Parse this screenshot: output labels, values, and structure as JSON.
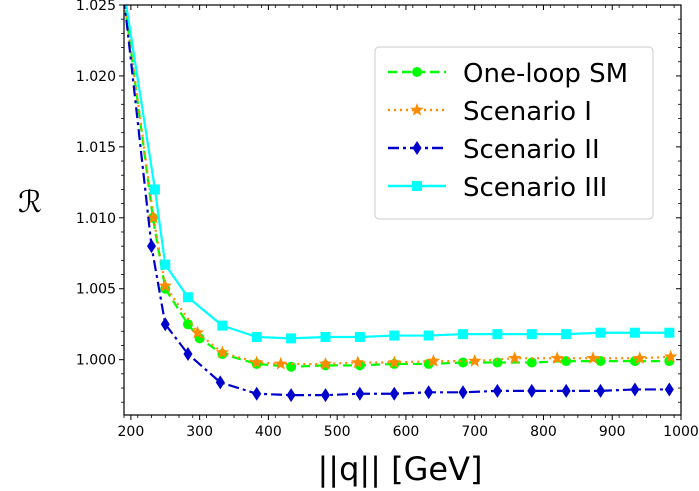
{
  "chart_data": {
    "type": "line",
    "title": "",
    "xlabel": "||q|| [GeV]",
    "ylabel": "ℛ",
    "xlim": [
      190,
      1000
    ],
    "ylim": [
      0.9961,
      1.025
    ],
    "xticks": [
      200,
      300,
      400,
      500,
      600,
      700,
      800,
      900,
      1000
    ],
    "xtick_labels": [
      "200",
      "300",
      "400",
      "500",
      "600",
      "700",
      "800",
      "900",
      "1000"
    ],
    "yticks": [
      1.0,
      1.005,
      1.01,
      1.015,
      1.02,
      1.025
    ],
    "ytick_labels": [
      "1.000",
      "1.005",
      "1.010",
      "1.015",
      "1.020",
      "1.025"
    ],
    "grid": false,
    "legend_position": "upper-right",
    "series": [
      {
        "name": "One-loop SM",
        "color": "#00ff00",
        "linestyle": "dashed",
        "marker": "circle",
        "x": [
          190,
          232,
          250,
          283,
          300,
          333,
          383,
          433,
          483,
          533,
          583,
          633,
          683,
          733,
          783,
          833,
          883,
          933,
          983
        ],
        "y": [
          1.0255,
          1.01,
          1.005,
          1.0025,
          1.0015,
          1.0004,
          0.9997,
          0.9995,
          0.9996,
          0.9996,
          0.9997,
          0.9997,
          0.9998,
          0.9998,
          0.9998,
          0.9999,
          0.9999,
          0.9999,
          0.9999
        ]
      },
      {
        "name": "Scenario I",
        "color": "#ff8c00",
        "linestyle": "dotted",
        "marker": "star",
        "x": [
          190,
          233,
          250,
          297,
          333,
          383,
          418,
          483,
          530,
          583,
          640,
          700,
          758,
          820,
          872,
          940,
          985
        ],
        "y": [
          1.0255,
          1.01,
          1.0052,
          1.0019,
          1.0005,
          0.9998,
          0.9997,
          0.9997,
          0.9998,
          0.9998,
          0.9999,
          0.9999,
          1.0001,
          1.0001,
          1.0001,
          1.0001,
          1.0002
        ]
      },
      {
        "name": "Scenario II",
        "color": "#0000cd",
        "linestyle": "dashdot",
        "marker": "diamond",
        "x": [
          190,
          230,
          250,
          283,
          330,
          383,
          433,
          483,
          533,
          583,
          633,
          683,
          733,
          783,
          833,
          883,
          933,
          983
        ],
        "y": [
          1.0255,
          1.008,
          1.0025,
          1.0004,
          0.9984,
          0.9976,
          0.9975,
          0.9975,
          0.9976,
          0.9976,
          0.9977,
          0.9977,
          0.9978,
          0.9978,
          0.9978,
          0.9978,
          0.9979,
          0.9979
        ]
      },
      {
        "name": "Scenario III",
        "color": "#00ffff",
        "linestyle": "solid",
        "marker": "square",
        "x": [
          190,
          235,
          250,
          283,
          333,
          383,
          433,
          483,
          533,
          583,
          633,
          683,
          733,
          783,
          833,
          883,
          933,
          983
        ],
        "y": [
          1.026,
          1.012,
          1.0067,
          1.0044,
          1.0024,
          1.0016,
          1.0015,
          1.0016,
          1.0016,
          1.0017,
          1.0017,
          1.0018,
          1.0018,
          1.0018,
          1.0018,
          1.0019,
          1.0019,
          1.0019
        ]
      }
    ]
  }
}
